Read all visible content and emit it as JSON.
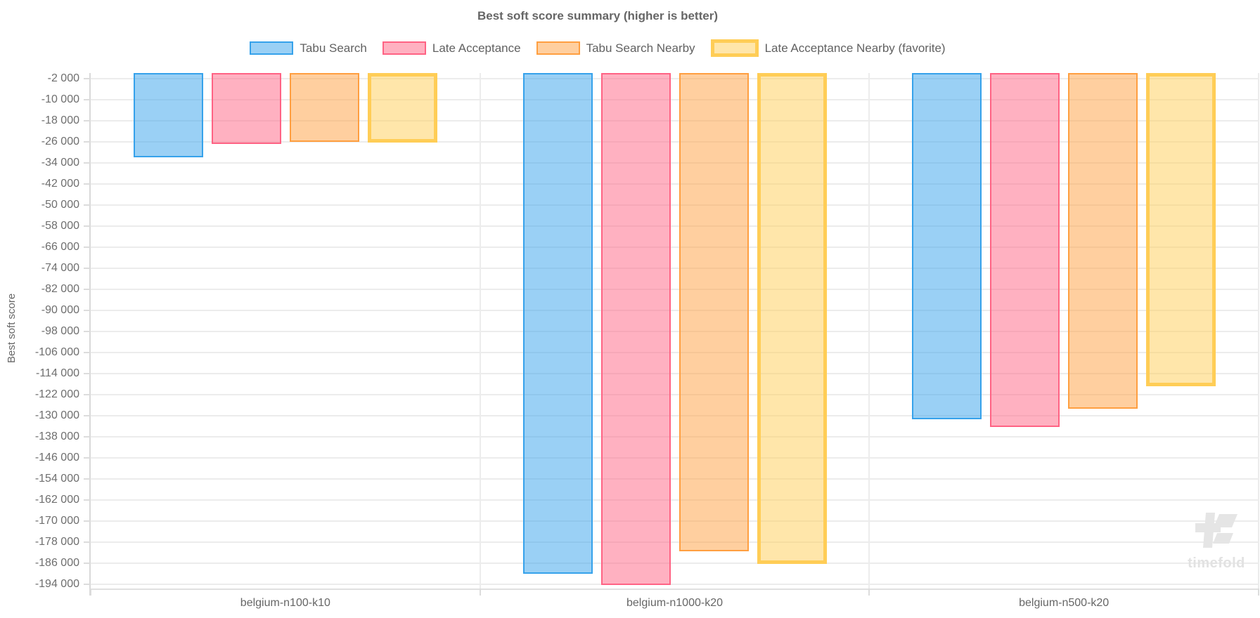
{
  "title": "Best soft score summary (higher is better)",
  "watermark": {
    "text": "timefold"
  },
  "colors": {
    "grid": "#ececec",
    "axis": "#d9d9d9",
    "title_text": "#666666",
    "tick_text": "#6e6e6e",
    "watermark": "#e5e5e5"
  },
  "chart_data": {
    "type": "bar",
    "title": "Best soft score summary (higher is better)",
    "xlabel": "",
    "ylabel": "Best soft score",
    "legend_position": "top",
    "grid": true,
    "categories": [
      "belgium-n100-k10",
      "belgium-n1000-k20",
      "belgium-n500-k20"
    ],
    "series": [
      {
        "name": "Tabu Search",
        "border_color": "#36A2EB",
        "fill_color": "rgba(54,162,235,0.5)",
        "border_width": 2,
        "values": [
          -32000,
          -190000,
          -131500
        ]
      },
      {
        "name": "Late Acceptance",
        "border_color": "#FF6384",
        "fill_color": "rgba(255,99,132,0.5)",
        "border_width": 2,
        "values": [
          -27000,
          -194500,
          -134500
        ]
      },
      {
        "name": "Tabu Search Nearby",
        "border_color": "#FF9F40",
        "fill_color": "rgba(255,159,64,0.5)",
        "border_width": 2,
        "values": [
          -26200,
          -181500,
          -127500
        ]
      },
      {
        "name": "Late Acceptance Nearby (favorite)",
        "border_color": "#FFCD56",
        "fill_color": "rgba(255,205,86,0.5)",
        "border_width": 5,
        "values": [
          -26500,
          -186500,
          -119000
        ]
      }
    ],
    "ylim": [
      0,
      -195700
    ],
    "y_ticks": [
      -2000,
      -10000,
      -18000,
      -26000,
      -34000,
      -42000,
      -50000,
      -58000,
      -66000,
      -74000,
      -82000,
      -90000,
      -98000,
      -106000,
      -114000,
      -122000,
      -130000,
      -138000,
      -146000,
      -154000,
      -162000,
      -170000,
      -178000,
      -186000,
      -194000
    ],
    "y_tick_labels": [
      "-2 000",
      "-10 000",
      "-18 000",
      "-26 000",
      "-34 000",
      "-42 000",
      "-50 000",
      "-58 000",
      "-66 000",
      "-74 000",
      "-82 000",
      "-90 000",
      "-98 000",
      "-106 000",
      "-114 000",
      "-122 000",
      "-130 000",
      "-138 000",
      "-146 000",
      "-154 000",
      "-162 000",
      "-170 000",
      "-178 000",
      "-186 000",
      "-194 000"
    ]
  }
}
